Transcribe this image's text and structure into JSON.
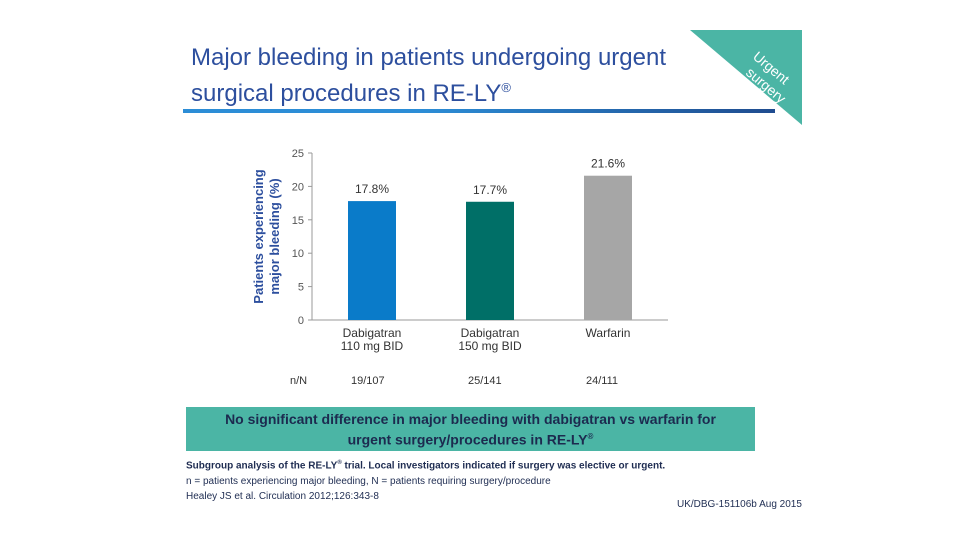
{
  "header": {
    "title_line1": "Major bleeding in patients undergoing urgent",
    "title_line2": "surgical procedures in RE-LY",
    "title_reg": "®"
  },
  "corner_tag": {
    "line1": "Urgent",
    "line2": "surgery",
    "color": "#4bb5a5"
  },
  "colors": {
    "title": "#2d4f9e",
    "rule_left": "#2c8dd6",
    "rule_right": "#1f4c8f",
    "banner": "#4bb5a5"
  },
  "chart_data": {
    "type": "bar",
    "categories": [
      [
        "Dabigatran",
        "110 mg BID"
      ],
      [
        "Dabigatran",
        "150 mg BID"
      ],
      [
        "Warfarin"
      ]
    ],
    "values": [
      17.8,
      17.7,
      21.6
    ],
    "value_labels": [
      "17.8%",
      "17.7%",
      "21.6%"
    ],
    "colors": [
      "#0a7bc9",
      "#006f67",
      "#a6a6a6"
    ],
    "ylabel_line1": "Patients experiencing",
    "ylabel_line2": "major bleeding (%)",
    "ylim": [
      0,
      25
    ],
    "yticks": [
      "0",
      "5",
      "10",
      "15",
      "20",
      "25"
    ]
  },
  "n_counts": {
    "label": "n/N",
    "values": [
      "19/107",
      "25/141",
      "24/111"
    ]
  },
  "banner": {
    "line1": "No significant difference in major bleeding with dabigatran vs warfarin for",
    "line2": "urgent surgery/procedures in RE-LY",
    "reg": "®"
  },
  "footnotes": {
    "line1a": "Subgroup analysis of the RE-LY",
    "reg": "®",
    "line1b": " trial. Local investigators indicated if surgery was elective or urgent.",
    "line2": "n = patients experiencing major bleeding, N = patients requiring surgery/procedure",
    "line3": "Healey JS et al. Circulation 2012;126:343-8"
  },
  "reference_code": "UK/DBG-151106b Aug 2015"
}
